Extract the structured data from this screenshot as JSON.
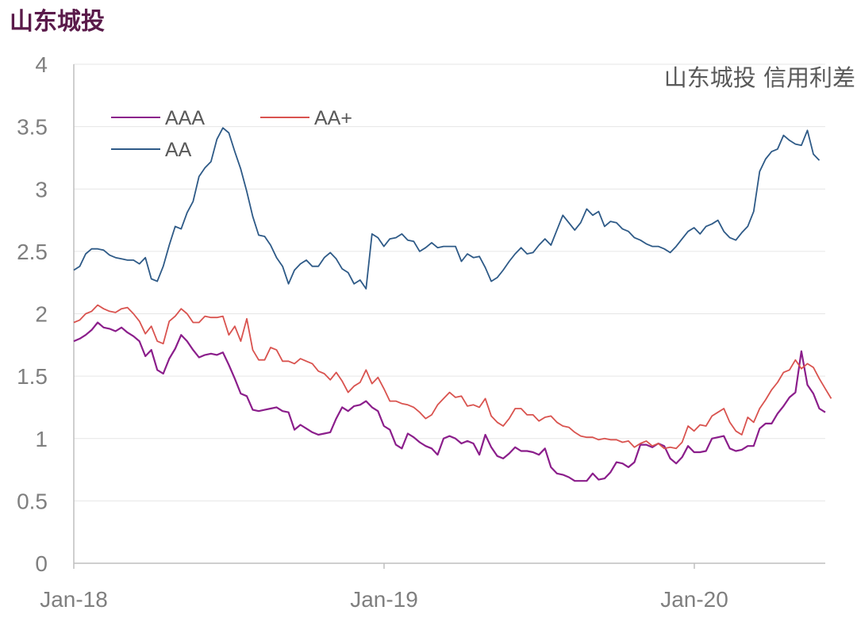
{
  "page_title": "山东城投",
  "chart_data": {
    "type": "line",
    "title": "山东城投 信用利差",
    "xlabel": "",
    "ylabel": "",
    "ylim": [
      0,
      4
    ],
    "yticks": [
      "0",
      "0.5",
      "1",
      "1.5",
      "2",
      "2.5",
      "3",
      "3.5",
      "4"
    ],
    "xticks": [
      {
        "label": "Jan-18",
        "week": 0
      },
      {
        "label": "Jan-19",
        "week": 52
      },
      {
        "label": "Jan-20",
        "week": 104
      }
    ],
    "x_unit": "weeks since Jan-18",
    "grid": "horizontal",
    "legend_position": "top-left",
    "series": [
      {
        "name": "AAA",
        "color": "#8b1e8b",
        "values": [
          1.78,
          1.8,
          1.83,
          1.87,
          1.93,
          1.89,
          1.88,
          1.86,
          1.89,
          1.85,
          1.82,
          1.78,
          1.66,
          1.71,
          1.55,
          1.52,
          1.64,
          1.72,
          1.83,
          1.78,
          1.71,
          1.65,
          1.67,
          1.68,
          1.67,
          1.69,
          1.59,
          1.48,
          1.36,
          1.34,
          1.23,
          1.22,
          1.23,
          1.24,
          1.25,
          1.22,
          1.21,
          1.07,
          1.11,
          1.08,
          1.05,
          1.03,
          1.04,
          1.05,
          1.16,
          1.25,
          1.22,
          1.26,
          1.27,
          1.3,
          1.25,
          1.22,
          1.1,
          1.07,
          0.95,
          0.92,
          1.04,
          1.01,
          0.97,
          0.94,
          0.92,
          0.87,
          1.0,
          1.02,
          1.0,
          0.96,
          0.98,
          0.96,
          0.87,
          1.03,
          0.93,
          0.86,
          0.84,
          0.88,
          0.93,
          0.9,
          0.9,
          0.89,
          0.87,
          0.92,
          0.77,
          0.72,
          0.71,
          0.69,
          0.66,
          0.66,
          0.66,
          0.72,
          0.67,
          0.68,
          0.73,
          0.81,
          0.8,
          0.77,
          0.81,
          0.95,
          0.95,
          0.93,
          0.96,
          0.94,
          0.84,
          0.8,
          0.85,
          0.94,
          0.89,
          0.89,
          0.9,
          1.0,
          1.01,
          1.02,
          0.92,
          0.9,
          0.91,
          0.94,
          0.94,
          1.08,
          1.12,
          1.12,
          1.2,
          1.26,
          1.33,
          1.37,
          1.7,
          1.43,
          1.36,
          1.24,
          1.21
        ]
      },
      {
        "name": "AA+",
        "color": "#d9534f",
        "values": [
          1.93,
          1.95,
          2.0,
          2.02,
          2.07,
          2.04,
          2.02,
          2.01,
          2.04,
          2.05,
          2.0,
          1.94,
          1.84,
          1.9,
          1.78,
          1.76,
          1.94,
          1.98,
          2.04,
          2.0,
          1.93,
          1.93,
          1.98,
          1.97,
          1.97,
          1.98,
          1.83,
          1.9,
          1.78,
          1.96,
          1.71,
          1.63,
          1.63,
          1.73,
          1.71,
          1.62,
          1.62,
          1.6,
          1.64,
          1.62,
          1.6,
          1.54,
          1.52,
          1.47,
          1.53,
          1.46,
          1.37,
          1.42,
          1.45,
          1.55,
          1.44,
          1.49,
          1.4,
          1.3,
          1.3,
          1.28,
          1.27,
          1.25,
          1.21,
          1.16,
          1.19,
          1.27,
          1.32,
          1.37,
          1.33,
          1.34,
          1.26,
          1.27,
          1.25,
          1.32,
          1.18,
          1.13,
          1.1,
          1.16,
          1.24,
          1.24,
          1.19,
          1.19,
          1.14,
          1.17,
          1.18,
          1.13,
          1.1,
          1.09,
          1.05,
          1.02,
          1.01,
          1.01,
          0.99,
          1.0,
          0.99,
          0.99,
          0.97,
          0.98,
          0.93,
          0.96,
          0.98,
          0.94,
          0.96,
          0.92,
          0.93,
          0.92,
          0.97,
          1.1,
          1.06,
          1.11,
          1.1,
          1.18,
          1.21,
          1.24,
          1.13,
          1.06,
          1.03,
          1.17,
          1.13,
          1.24,
          1.31,
          1.39,
          1.45,
          1.53,
          1.55,
          1.63,
          1.56,
          1.6,
          1.57,
          1.48,
          1.4,
          1.32
        ]
      },
      {
        "name": "AA",
        "color": "#2e5a87",
        "values": [
          2.35,
          2.38,
          2.48,
          2.52,
          2.52,
          2.51,
          2.47,
          2.45,
          2.44,
          2.43,
          2.43,
          2.4,
          2.45,
          2.28,
          2.26,
          2.38,
          2.55,
          2.7,
          2.68,
          2.81,
          2.9,
          3.1,
          3.17,
          3.22,
          3.4,
          3.49,
          3.45,
          3.3,
          3.16,
          2.98,
          2.78,
          2.63,
          2.62,
          2.55,
          2.45,
          2.38,
          2.24,
          2.35,
          2.4,
          2.43,
          2.38,
          2.38,
          2.45,
          2.49,
          2.44,
          2.36,
          2.33,
          2.24,
          2.27,
          2.2,
          2.64,
          2.61,
          2.54,
          2.6,
          2.61,
          2.64,
          2.59,
          2.58,
          2.5,
          2.53,
          2.57,
          2.53,
          2.54,
          2.54,
          2.54,
          2.42,
          2.48,
          2.45,
          2.46,
          2.37,
          2.26,
          2.29,
          2.35,
          2.42,
          2.48,
          2.53,
          2.48,
          2.49,
          2.55,
          2.6,
          2.55,
          2.67,
          2.79,
          2.73,
          2.67,
          2.73,
          2.84,
          2.79,
          2.82,
          2.7,
          2.74,
          2.73,
          2.68,
          2.66,
          2.61,
          2.59,
          2.56,
          2.54,
          2.54,
          2.52,
          2.49,
          2.54,
          2.6,
          2.66,
          2.69,
          2.64,
          2.7,
          2.72,
          2.75,
          2.66,
          2.61,
          2.59,
          2.65,
          2.7,
          2.82,
          3.14,
          3.24,
          3.3,
          3.32,
          3.43,
          3.39,
          3.36,
          3.35,
          3.47,
          3.28,
          3.23
        ]
      }
    ]
  }
}
